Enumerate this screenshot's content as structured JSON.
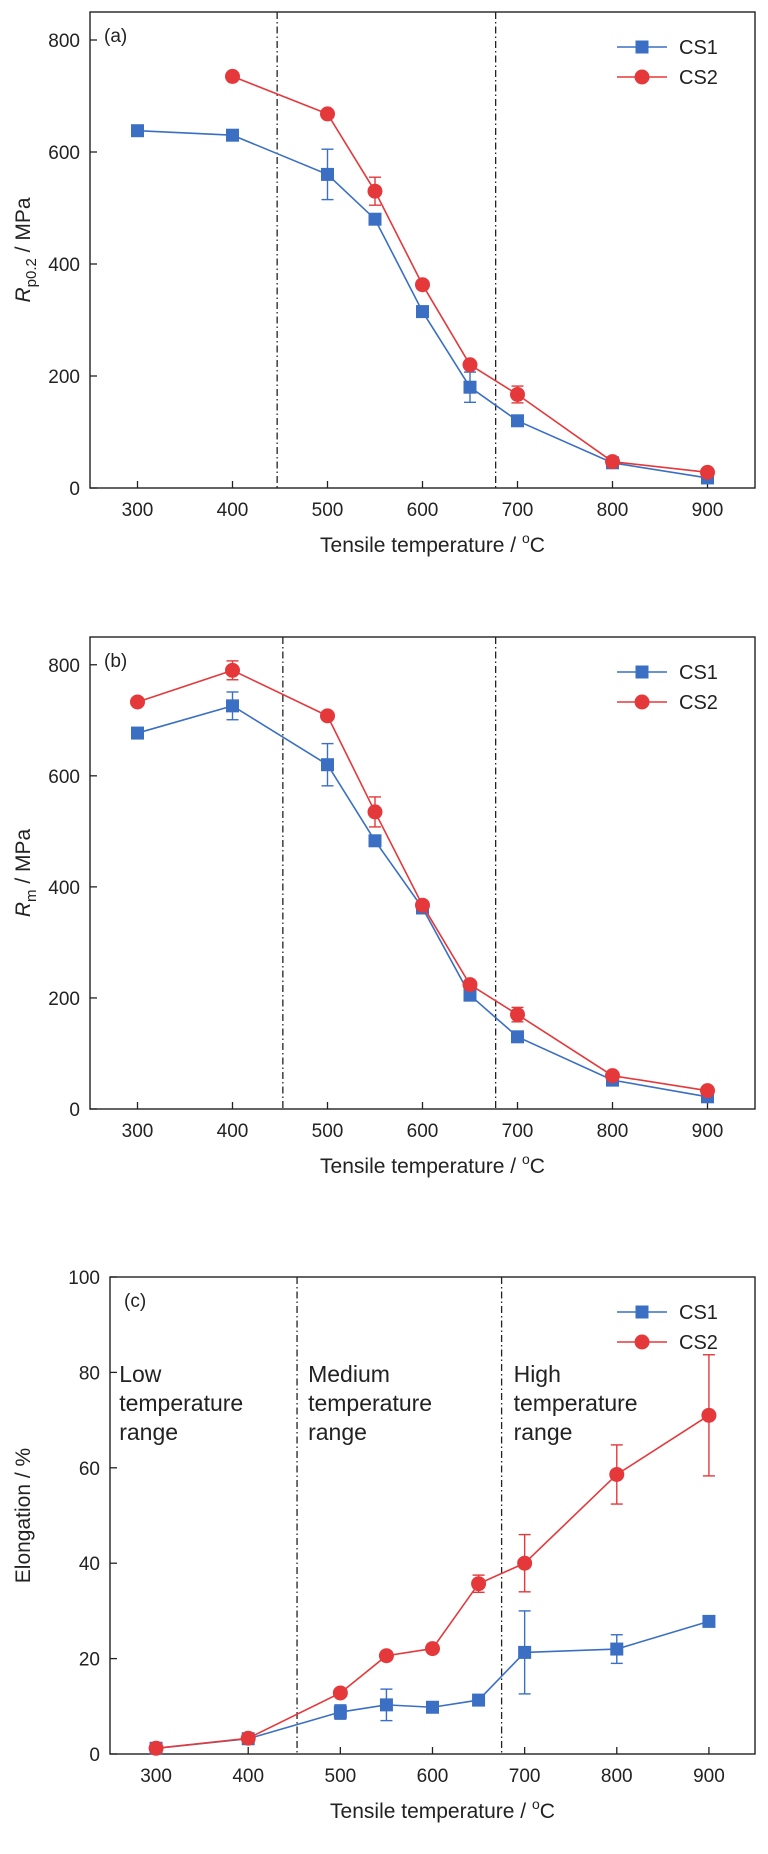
{
  "figure": {
    "colors": {
      "CS1": "#3a6fc4",
      "CS2": "#e5383b",
      "axis": "#222222",
      "divider": "#222222"
    }
  },
  "chart_data": [
    {
      "type": "line",
      "panel_label": "(a)",
      "ylabel_italic": "R",
      "ylabel_sub": "p0.2",
      "ylabel_rest": " / MPa",
      "xlabel": "Tensile temperature / ",
      "xlabel_unit_sup": "o",
      "xlabel_unit": "C",
      "xlim": [
        250,
        950
      ],
      "ylim": [
        0,
        850
      ],
      "xticks": [
        300,
        400,
        500,
        600,
        700,
        800,
        900
      ],
      "yticks": [
        0,
        200,
        400,
        600,
        800
      ],
      "grid": false,
      "legend_position": "top-right",
      "dividers": [
        447,
        677
      ],
      "series": [
        {
          "name": "CS1",
          "marker": "square",
          "x": [
            300,
            400,
            500,
            550,
            600,
            650,
            700,
            800,
            900
          ],
          "y": [
            638,
            630,
            560,
            480,
            315,
            180,
            120,
            45,
            18
          ],
          "err": [
            0,
            0,
            45,
            0,
            0,
            27,
            0,
            0,
            0
          ]
        },
        {
          "name": "CS2",
          "marker": "circle",
          "x": [
            400,
            500,
            550,
            600,
            650,
            700,
            800,
            900
          ],
          "y": [
            735,
            668,
            530,
            363,
            220,
            167,
            47,
            28
          ],
          "err": [
            0,
            0,
            25,
            0,
            0,
            15,
            0,
            0
          ]
        }
      ]
    },
    {
      "type": "line",
      "panel_label": "(b)",
      "ylabel_italic": "R",
      "ylabel_sub": "m",
      "ylabel_rest": " / MPa",
      "xlabel": "Tensile temperature / ",
      "xlabel_unit_sup": "o",
      "xlabel_unit": "C",
      "xlim": [
        250,
        950
      ],
      "ylim": [
        0,
        850
      ],
      "xticks": [
        300,
        400,
        500,
        600,
        700,
        800,
        900
      ],
      "yticks": [
        0,
        200,
        400,
        600,
        800
      ],
      "grid": false,
      "legend_position": "top-right",
      "dividers": [
        453,
        677
      ],
      "series": [
        {
          "name": "CS1",
          "marker": "square",
          "x": [
            300,
            400,
            500,
            550,
            600,
            650,
            700,
            800,
            900
          ],
          "y": [
            677,
            726,
            620,
            483,
            362,
            205,
            130,
            52,
            22
          ],
          "err": [
            0,
            25,
            38,
            0,
            0,
            0,
            0,
            0,
            0
          ]
        },
        {
          "name": "CS2",
          "marker": "circle",
          "x": [
            300,
            400,
            500,
            550,
            600,
            650,
            700,
            800,
            900
          ],
          "y": [
            733,
            790,
            708,
            535,
            367,
            224,
            170,
            60,
            33
          ],
          "err": [
            0,
            17,
            0,
            27,
            0,
            0,
            13,
            0,
            0
          ]
        }
      ]
    },
    {
      "type": "line",
      "panel_label": "(c)",
      "ylabel_italic": "",
      "ylabel_sub": "",
      "ylabel_rest": "Elongation / %",
      "xlabel": "Tensile temperature / ",
      "xlabel_unit_sup": "o",
      "xlabel_unit": "C",
      "xlim": [
        250,
        950
      ],
      "ylim": [
        0,
        100
      ],
      "xticks": [
        300,
        400,
        500,
        600,
        700,
        800,
        900
      ],
      "yticks": [
        0,
        20,
        40,
        60,
        80,
        100
      ],
      "grid": false,
      "legend_position": "top-right",
      "dividers": [
        453,
        675
      ],
      "annotations": [
        {
          "lines": [
            "Low",
            "temperature",
            "range"
          ],
          "x": 260,
          "y": 78
        },
        {
          "lines": [
            "Medium",
            "temperature",
            "range"
          ],
          "x": 465,
          "y": 78
        },
        {
          "lines": [
            "High",
            "temperature",
            "range"
          ],
          "x": 688,
          "y": 78
        }
      ],
      "series": [
        {
          "name": "CS1",
          "marker": "square",
          "x": [
            300,
            400,
            500,
            550,
            600,
            650,
            700,
            800,
            900
          ],
          "y": [
            1.2,
            3.2,
            8.8,
            10.3,
            9.8,
            11.3,
            21.3,
            22.0,
            27.8
          ],
          "err": [
            0,
            0,
            1.5,
            3.3,
            0,
            0,
            8.7,
            3.0,
            0
          ]
        },
        {
          "name": "CS2",
          "marker": "circle",
          "x": [
            300,
            400,
            500,
            550,
            600,
            650,
            700,
            800,
            900
          ],
          "y": [
            1.2,
            3.3,
            12.8,
            20.6,
            22.1,
            35.7,
            40.0,
            58.6,
            71.0
          ],
          "err": [
            0,
            0,
            0,
            0,
            0,
            1.8,
            6.0,
            6.2,
            12.7
          ]
        }
      ]
    }
  ]
}
